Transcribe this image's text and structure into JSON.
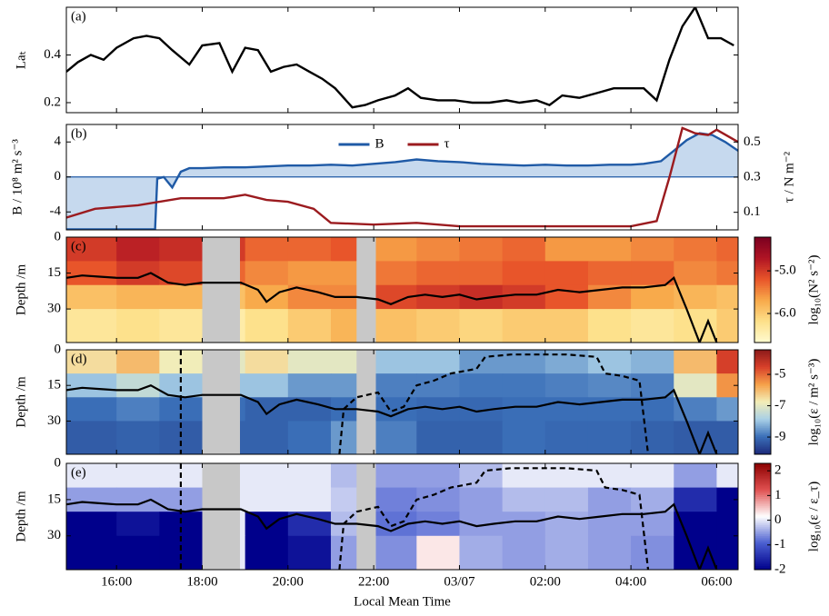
{
  "chart_data": [
    {
      "type": "line",
      "label": "(a)",
      "ylabel": "Laₜ",
      "xlim": [
        14.83,
        30.5
      ],
      "ylim": [
        0.158,
        0.6
      ],
      "yticks": [
        0.2,
        0.4
      ],
      "series": [
        {
          "color": "#000000",
          "x": [
            14.83,
            15.1,
            15.4,
            15.7,
            16.0,
            16.4,
            16.7,
            17.0,
            17.3,
            17.7,
            18.0,
            18.4,
            18.7,
            19.0,
            19.3,
            19.6,
            19.9,
            20.2,
            20.5,
            20.8,
            21.1,
            21.5,
            21.8,
            22.1,
            22.5,
            22.8,
            23.1,
            23.5,
            23.9,
            24.3,
            24.7,
            25.1,
            25.4,
            25.8,
            26.1,
            26.4,
            26.8,
            27.2,
            27.6,
            28.0,
            28.3,
            28.6,
            28.9,
            29.2,
            29.5,
            29.8,
            30.1,
            30.4
          ],
          "values": [
            0.33,
            0.37,
            0.4,
            0.38,
            0.43,
            0.47,
            0.48,
            0.47,
            0.42,
            0.36,
            0.44,
            0.45,
            0.33,
            0.43,
            0.42,
            0.33,
            0.35,
            0.36,
            0.33,
            0.3,
            0.26,
            0.18,
            0.19,
            0.21,
            0.23,
            0.26,
            0.22,
            0.21,
            0.21,
            0.2,
            0.2,
            0.21,
            0.2,
            0.21,
            0.19,
            0.23,
            0.22,
            0.24,
            0.26,
            0.26,
            0.26,
            0.21,
            0.38,
            0.52,
            0.6,
            0.47,
            0.47,
            0.44
          ]
        }
      ]
    },
    {
      "type": "dual",
      "label": "(b)",
      "ylabel": "B / 10⁸ m² s⁻³",
      "y2label": "τ / N m⁻²",
      "xlim": [
        14.83,
        30.5
      ],
      "ylim": [
        -6.05,
        6.0
      ],
      "yticks": [
        -4,
        0,
        4
      ],
      "y2lim": [
        0.0,
        0.6
      ],
      "y2ticks": [
        0.1,
        0.3,
        0.5
      ],
      "legend": "top-center",
      "fill_color": "#c6d9ee",
      "series": [
        {
          "name": "B",
          "color": "#1f5aa6",
          "fill": true,
          "x": [
            14.83,
            16.9,
            16.95,
            17.1,
            17.3,
            17.5,
            17.7,
            18.0,
            18.5,
            19.0,
            19.5,
            20.0,
            20.5,
            21.0,
            21.5,
            22.0,
            22.5,
            23.0,
            23.5,
            24.0,
            24.5,
            25.0,
            25.5,
            26.0,
            26.5,
            27.0,
            27.5,
            28.0,
            28.3,
            28.7,
            29.0,
            29.3,
            29.6,
            29.9,
            30.2,
            30.5
          ],
          "values": [
            -6.0,
            -6.0,
            -0.2,
            0.0,
            -1.2,
            0.6,
            1.0,
            1.0,
            1.1,
            1.1,
            1.2,
            1.3,
            1.3,
            1.4,
            1.3,
            1.5,
            1.7,
            2.0,
            1.8,
            1.7,
            1.5,
            1.4,
            1.3,
            1.4,
            1.3,
            1.3,
            1.4,
            1.4,
            1.5,
            1.8,
            3.0,
            4.2,
            5.0,
            4.8,
            4.0,
            3.0
          ]
        },
        {
          "name": "τ",
          "color": "#9b1b1f",
          "axis": "y2",
          "x": [
            14.83,
            15.5,
            16.5,
            17.5,
            18.5,
            19.0,
            19.5,
            20.0,
            20.6,
            21.0,
            22.0,
            23.0,
            24.0,
            26.0,
            28.0,
            28.6,
            28.9,
            29.2,
            29.5,
            29.8,
            30.0,
            30.5
          ],
          "values": [
            0.07,
            0.12,
            0.14,
            0.18,
            0.18,
            0.2,
            0.17,
            0.16,
            0.12,
            0.04,
            0.03,
            0.04,
            0.02,
            0.02,
            0.02,
            0.05,
            0.3,
            0.58,
            0.55,
            0.54,
            0.57,
            0.5
          ]
        }
      ]
    },
    {
      "type": "heatmap",
      "label": "(c)",
      "ylabel": "Depth /m",
      "invert_y": true,
      "xlim": [
        14.83,
        30.5
      ],
      "ylim": [
        0,
        44
      ],
      "yticks": [
        0,
        15,
        30
      ],
      "clim": [
        -6.68,
        -4.21
      ],
      "cticks": [
        {
          "value": -5,
          "label": "-5.0"
        },
        {
          "value": -6,
          "label": "-6.0"
        }
      ],
      "clabel": "log₁₀(N² s⁻²)",
      "colormap": [
        "#fffbd0",
        "#fde08a",
        "#f8a94a",
        "#e8552a",
        "#b01424",
        "#7a0020"
      ],
      "x_edges": [
        14.83,
        16,
        17,
        18,
        19,
        20,
        21,
        22,
        23,
        24,
        25,
        26,
        27,
        28,
        29,
        30,
        30.5
      ],
      "depth_edges": [
        0,
        10,
        20,
        30,
        44
      ],
      "z": [
        [
          -5.0,
          -4.8,
          -4.9,
          -5.0,
          -5.3,
          -5.3,
          -5.2,
          -5.6,
          -5.5,
          -5.4,
          -5.3,
          -5.6,
          -5.6,
          -5.5,
          -5.4,
          -5.3
        ],
        [
          -5.2,
          -5.0,
          -5.1,
          -5.3,
          -5.5,
          -5.6,
          -5.6,
          -5.4,
          -5.3,
          -5.3,
          -5.2,
          -5.2,
          -5.3,
          -5.3,
          -5.5,
          -5.4
        ],
        [
          -5.9,
          -5.8,
          -5.8,
          -5.9,
          -5.7,
          -5.5,
          -5.5,
          -5.1,
          -5.0,
          -4.9,
          -5.0,
          -5.2,
          -5.5,
          -5.7,
          -5.8,
          -5.9
        ],
        [
          -6.3,
          -6.2,
          -6.3,
          -6.4,
          -6.2,
          -6.0,
          -5.8,
          -5.9,
          -6.0,
          -6.1,
          -6.0,
          -6.0,
          -6.2,
          -6.3,
          -6.2,
          -6.0
        ]
      ],
      "gaps": [
        [
          18.0,
          18.88
        ],
        [
          21.6,
          22.05
        ]
      ],
      "gap_color": "#c8c8c8",
      "lines": [
        {
          "color": "#000000",
          "style": "solid",
          "x": [
            14.83,
            15.2,
            15.6,
            16.0,
            16.5,
            16.8,
            17.2,
            17.6,
            18.0,
            18.9,
            19.3,
            19.5,
            19.8,
            20.2,
            20.7,
            21.1,
            21.6,
            22.1,
            22.4,
            22.8,
            23.2,
            23.6,
            24.0,
            24.4,
            24.8,
            25.3,
            25.8,
            26.3,
            26.8,
            27.3,
            27.8,
            28.3,
            28.8,
            29.0,
            29.3,
            29.6,
            29.8,
            30.0
          ],
          "values": [
            17,
            16,
            16.5,
            17,
            17,
            15,
            19,
            20,
            19,
            19,
            22,
            27,
            23,
            21,
            23,
            25,
            25,
            26,
            28,
            25,
            24,
            25,
            24,
            26,
            25,
            24,
            24,
            22,
            23,
            22,
            21,
            21,
            20,
            17,
            30,
            44,
            35,
            44
          ]
        }
      ]
    },
    {
      "type": "heatmap",
      "label": "(d)",
      "ylabel": "Depth /m",
      "invert_y": true,
      "xlim": [
        14.83,
        30.5
      ],
      "ylim": [
        0,
        44
      ],
      "yticks": [
        0,
        15,
        30
      ],
      "clim": [
        -10.1,
        -3.43
      ],
      "cticks": [
        -5,
        -7,
        -9
      ],
      "clabel": "log₁₀(ε / m² s⁻³)",
      "colormap": [
        "#1d2a7a",
        "#3a6fb8",
        "#a8cfe6",
        "#f3eeb8",
        "#f6a24a",
        "#d8402a",
        "#8b1a1a"
      ],
      "x_edges": [
        14.83,
        16,
        17,
        18,
        19,
        20,
        21,
        22,
        23,
        24,
        25,
        26,
        27,
        28,
        29,
        30,
        30.5
      ],
      "depth_edges": [
        0,
        10,
        20,
        30,
        44
      ],
      "z": [
        [
          -6.5,
          -6.0,
          -6.8,
          -7.0,
          -6.5,
          -7.0,
          -7.0,
          -8.0,
          -8.0,
          -8.5,
          -8.5,
          -8.3,
          -8.0,
          -8.2,
          -6.0,
          -4.5
        ],
        [
          -8.0,
          -7.5,
          -8.0,
          -8.0,
          -8.0,
          -8.5,
          -8.5,
          -8.8,
          -8.8,
          -8.9,
          -8.9,
          -8.8,
          -8.7,
          -8.8,
          -7.0,
          -5.5
        ],
        [
          -9.0,
          -8.8,
          -9.0,
          -9.0,
          -9.2,
          -9.2,
          -9.0,
          -9.0,
          -9.1,
          -9.1,
          -9.0,
          -9.0,
          -9.0,
          -9.0,
          -8.8,
          -8.5
        ],
        [
          -9.3,
          -9.2,
          -9.3,
          -9.2,
          -9.2,
          -9.0,
          -8.5,
          -8.8,
          -9.2,
          -9.2,
          -9.0,
          -9.1,
          -9.1,
          -9.2,
          -9.3,
          -9.3
        ]
      ],
      "gaps": [
        [
          18.0,
          18.88
        ],
        [
          21.6,
          22.05
        ]
      ],
      "gap_color": "#c8c8c8",
      "lines": [
        {
          "color": "#000000",
          "style": "solid",
          "x": [
            14.83,
            15.2,
            15.6,
            16.0,
            16.5,
            16.8,
            17.2,
            17.6,
            18.0,
            18.9,
            19.3,
            19.5,
            19.8,
            20.2,
            20.7,
            21.1,
            21.6,
            22.1,
            22.4,
            22.8,
            23.2,
            23.6,
            24.0,
            24.4,
            24.8,
            25.3,
            25.8,
            26.3,
            26.8,
            27.3,
            27.8,
            28.3,
            28.8,
            29.0,
            29.3,
            29.6,
            29.8,
            30.0
          ],
          "values": [
            17,
            16,
            16.5,
            17,
            17,
            15,
            19,
            20,
            19,
            19,
            22,
            27,
            23,
            21,
            23,
            25,
            25,
            26,
            28,
            25,
            24,
            25,
            24,
            26,
            25,
            24,
            24,
            22,
            23,
            22,
            21,
            21,
            20,
            17,
            30,
            44,
            35,
            44
          ]
        },
        {
          "color": "#000000",
          "style": "dashed",
          "x": [
            17.5,
            17.5,
            null,
            21.2,
            21.3,
            21.6,
            22.1,
            22.4,
            22.7,
            23.0,
            23.4,
            23.8,
            24.4,
            24.6,
            25.2,
            26.5,
            27.2,
            27.4,
            27.8,
            28.2,
            28.4
          ],
          "values": [
            0,
            44,
            null,
            44,
            25,
            20,
            18,
            26,
            24,
            15,
            13,
            10,
            8,
            3,
            2,
            2,
            3,
            10,
            11,
            13,
            44
          ]
        }
      ]
    },
    {
      "type": "heatmap",
      "label": "(e)",
      "ylabel": "Depth /m",
      "invert_y": true,
      "xlabel": "Local Mean Time",
      "xlim": [
        14.83,
        30.5
      ],
      "ylim": [
        0,
        44
      ],
      "yticks": [
        0,
        15,
        30
      ],
      "xticks": [
        {
          "value": 16,
          "label": "16:00"
        },
        {
          "value": 18,
          "label": "18:00"
        },
        {
          "value": 20,
          "label": "20:00"
        },
        {
          "value": 22,
          "label": "22:00"
        },
        {
          "value": 24,
          "label": "03/07"
        },
        {
          "value": 26,
          "label": "02:00"
        },
        {
          "value": 28,
          "label": "04:00"
        },
        {
          "value": 30,
          "label": "06:00"
        }
      ],
      "clim": [
        -2.0,
        2.3
      ],
      "cticks": [
        2,
        1,
        0,
        -1,
        -2
      ],
      "clabel": "log₁₀(ε / ε_τ)",
      "colormap": [
        "#00008b",
        "#4a5fd0",
        "#ffffff",
        "#e05050",
        "#8b0000"
      ],
      "x_edges": [
        14.83,
        16,
        17,
        18,
        19,
        20,
        21,
        22,
        23,
        24,
        25,
        26,
        27,
        28,
        29,
        30,
        30.5
      ],
      "depth_edges": [
        0,
        10,
        20,
        30,
        44
      ],
      "z": [
        [
          0,
          0,
          0,
          0,
          0,
          0,
          -0.3,
          -0.5,
          -0.5,
          -0.3,
          0,
          0,
          0,
          0,
          -0.5,
          0
        ],
        [
          -0.5,
          -0.5,
          -0.5,
          0,
          0,
          0,
          -0.2,
          -0.7,
          -0.6,
          -0.5,
          -0.3,
          -0.3,
          -0.5,
          -0.4,
          -1.5,
          -2
        ],
        [
          -2,
          -1.8,
          -2,
          0,
          -2,
          -1.5,
          -0.3,
          -0.8,
          -0.7,
          -0.5,
          -0.5,
          -0.4,
          -0.5,
          -0.5,
          -2,
          -2
        ],
        [
          -2,
          -2,
          -2,
          0,
          -2,
          -1.8,
          -0.5,
          -0.6,
          0.3,
          -0.4,
          -0.5,
          -0.4,
          -0.5,
          -0.6,
          -2,
          -2
        ]
      ],
      "gaps": [
        [
          18.0,
          18.88
        ],
        [
          21.6,
          22.05
        ]
      ],
      "gap_color": "#c8c8c8",
      "lines": [
        {
          "color": "#000000",
          "style": "solid",
          "x": [
            14.83,
            15.2,
            15.6,
            16.0,
            16.5,
            16.8,
            17.2,
            17.6,
            18.0,
            18.9,
            19.3,
            19.5,
            19.8,
            20.2,
            20.7,
            21.1,
            21.6,
            22.1,
            22.4,
            22.8,
            23.2,
            23.6,
            24.0,
            24.4,
            24.8,
            25.3,
            25.8,
            26.3,
            26.8,
            27.3,
            27.8,
            28.3,
            28.8,
            29.0,
            29.3,
            29.6,
            29.8,
            30.0
          ],
          "values": [
            17,
            16,
            16.5,
            17,
            17,
            15,
            19,
            20,
            19,
            19,
            22,
            27,
            23,
            21,
            23,
            25,
            25,
            26,
            28,
            25,
            24,
            25,
            24,
            26,
            25,
            24,
            24,
            22,
            23,
            22,
            21,
            21,
            20,
            17,
            30,
            44,
            35,
            44
          ]
        },
        {
          "color": "#000000",
          "style": "dashed",
          "x": [
            17.5,
            17.5,
            null,
            21.2,
            21.3,
            21.6,
            22.1,
            22.4,
            22.7,
            23.0,
            23.4,
            23.8,
            24.4,
            24.6,
            25.2,
            26.5,
            27.2,
            27.4,
            27.8,
            28.2,
            28.4
          ],
          "values": [
            0,
            44,
            null,
            44,
            25,
            20,
            18,
            26,
            24,
            15,
            13,
            10,
            8,
            3,
            2,
            2,
            3,
            10,
            11,
            13,
            44
          ]
        }
      ]
    }
  ]
}
